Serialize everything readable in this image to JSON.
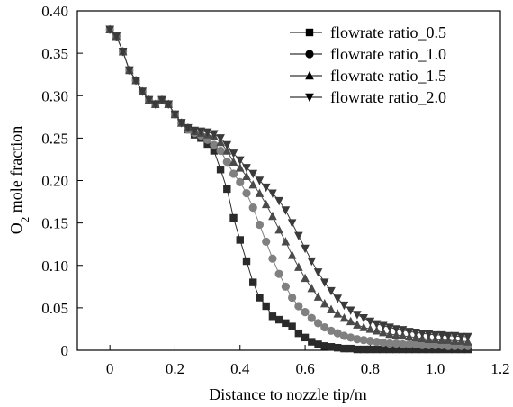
{
  "chart_data": {
    "type": "line",
    "title": "",
    "xlabel": "Distance to nozzle tip/m",
    "ylabel": "O2 mole fraction",
    "ylabel_main": "O",
    "ylabel_sub": "2",
    "ylabel_rest": " mole fraction",
    "xlim": [
      -0.1,
      1.2
    ],
    "ylim": [
      0,
      0.4
    ],
    "xticks": [
      0,
      0.2,
      0.4,
      0.6,
      0.8,
      1.0,
      1.2
    ],
    "xtick_labels": [
      "0",
      "0.2",
      "0.4",
      "0.6",
      "0.8",
      "1.0",
      "1.2"
    ],
    "yticks": [
      0,
      0.05,
      0.1,
      0.15,
      0.2,
      0.25,
      0.3,
      0.35,
      0.4
    ],
    "ytick_labels": [
      "0",
      "0.05",
      "0.10",
      "0.15",
      "0.20",
      "0.25",
      "0.30",
      "0.35",
      "0.40"
    ],
    "grid": false,
    "legend_position": "top-right",
    "series": [
      {
        "name": "flowrate ratio_0.5",
        "marker": "square",
        "color": "#2a2a2a",
        "x": [
          0,
          0.02,
          0.04,
          0.06,
          0.08,
          0.1,
          0.12,
          0.14,
          0.16,
          0.18,
          0.2,
          0.22,
          0.24,
          0.26,
          0.28,
          0.3,
          0.32,
          0.34,
          0.36,
          0.38,
          0.4,
          0.42,
          0.44,
          0.46,
          0.48,
          0.5,
          0.52,
          0.54,
          0.56,
          0.58,
          0.6,
          0.62,
          0.64,
          0.66,
          0.68,
          0.7,
          0.72,
          0.74,
          0.76,
          0.78,
          0.8,
          0.82,
          0.84,
          0.86,
          0.88,
          0.9,
          0.92,
          0.94,
          0.96,
          0.98,
          1.0,
          1.02,
          1.04,
          1.06,
          1.08,
          1.1
        ],
        "y": [
          0.378,
          0.37,
          0.352,
          0.33,
          0.318,
          0.305,
          0.295,
          0.29,
          0.295,
          0.29,
          0.278,
          0.268,
          0.26,
          0.254,
          0.25,
          0.243,
          0.235,
          0.213,
          0.19,
          0.156,
          0.13,
          0.105,
          0.08,
          0.062,
          0.052,
          0.04,
          0.036,
          0.032,
          0.028,
          0.02,
          0.015,
          0.01,
          0.007,
          0.005,
          0.004,
          0.003,
          0.002,
          0.002,
          0.001,
          0.001,
          0.001,
          0.001,
          0.001,
          0.001,
          0.001,
          0.001,
          0.001,
          0.001,
          0.001,
          0.001,
          0.001,
          0.001,
          0.001,
          0.001,
          0.001,
          0.001
        ]
      },
      {
        "name": "flowrate ratio_1.0",
        "marker": "circle",
        "color": "#808080",
        "x": [
          0,
          0.02,
          0.04,
          0.06,
          0.08,
          0.1,
          0.12,
          0.14,
          0.16,
          0.18,
          0.2,
          0.22,
          0.24,
          0.26,
          0.28,
          0.3,
          0.32,
          0.34,
          0.36,
          0.38,
          0.4,
          0.42,
          0.44,
          0.46,
          0.48,
          0.5,
          0.52,
          0.54,
          0.56,
          0.58,
          0.6,
          0.62,
          0.64,
          0.66,
          0.68,
          0.7,
          0.72,
          0.74,
          0.76,
          0.78,
          0.8,
          0.82,
          0.84,
          0.86,
          0.88,
          0.9,
          0.92,
          0.94,
          0.96,
          0.98,
          1.0,
          1.02,
          1.04,
          1.06,
          1.08,
          1.1
        ],
        "y": [
          0.378,
          0.37,
          0.352,
          0.33,
          0.318,
          0.305,
          0.295,
          0.29,
          0.295,
          0.29,
          0.278,
          0.268,
          0.26,
          0.256,
          0.253,
          0.248,
          0.242,
          0.235,
          0.222,
          0.208,
          0.198,
          0.185,
          0.168,
          0.148,
          0.128,
          0.108,
          0.09,
          0.075,
          0.062,
          0.052,
          0.045,
          0.038,
          0.032,
          0.027,
          0.023,
          0.02,
          0.017,
          0.015,
          0.013,
          0.012,
          0.011,
          0.01,
          0.009,
          0.008,
          0.008,
          0.007,
          0.007,
          0.007,
          0.006,
          0.006,
          0.006,
          0.006,
          0.005,
          0.005,
          0.005,
          0.005
        ]
      },
      {
        "name": "flowrate ratio_1.5",
        "marker": "triangle-up",
        "color": "#4a4a4a",
        "x": [
          0,
          0.02,
          0.04,
          0.06,
          0.08,
          0.1,
          0.12,
          0.14,
          0.16,
          0.18,
          0.2,
          0.22,
          0.24,
          0.26,
          0.28,
          0.3,
          0.32,
          0.34,
          0.36,
          0.38,
          0.4,
          0.42,
          0.44,
          0.46,
          0.48,
          0.5,
          0.52,
          0.54,
          0.56,
          0.58,
          0.6,
          0.62,
          0.64,
          0.66,
          0.68,
          0.7,
          0.72,
          0.74,
          0.76,
          0.78,
          0.8,
          0.82,
          0.84,
          0.86,
          0.88,
          0.9,
          0.92,
          0.94,
          0.96,
          0.98,
          1.0,
          1.02,
          1.04,
          1.06,
          1.08,
          1.1
        ],
        "y": [
          0.378,
          0.37,
          0.352,
          0.33,
          0.318,
          0.305,
          0.295,
          0.29,
          0.295,
          0.29,
          0.278,
          0.268,
          0.262,
          0.258,
          0.256,
          0.254,
          0.252,
          0.245,
          0.235,
          0.222,
          0.215,
          0.205,
          0.195,
          0.185,
          0.172,
          0.158,
          0.142,
          0.128,
          0.112,
          0.098,
          0.085,
          0.073,
          0.063,
          0.055,
          0.048,
          0.043,
          0.038,
          0.034,
          0.03,
          0.027,
          0.025,
          0.023,
          0.021,
          0.019,
          0.018,
          0.017,
          0.016,
          0.015,
          0.014,
          0.013,
          0.013,
          0.012,
          0.012,
          0.011,
          0.011,
          0.01
        ]
      },
      {
        "name": "flowrate ratio_2.0",
        "marker": "triangle-down",
        "color": "#3a3a3a",
        "x": [
          0,
          0.02,
          0.04,
          0.06,
          0.08,
          0.1,
          0.12,
          0.14,
          0.16,
          0.18,
          0.2,
          0.22,
          0.24,
          0.26,
          0.28,
          0.3,
          0.32,
          0.34,
          0.36,
          0.38,
          0.4,
          0.42,
          0.44,
          0.46,
          0.48,
          0.5,
          0.52,
          0.54,
          0.56,
          0.58,
          0.6,
          0.62,
          0.64,
          0.66,
          0.68,
          0.7,
          0.72,
          0.74,
          0.76,
          0.78,
          0.8,
          0.82,
          0.84,
          0.86,
          0.88,
          0.9,
          0.92,
          0.94,
          0.96,
          0.98,
          1.0,
          1.02,
          1.04,
          1.06,
          1.08,
          1.1
        ],
        "y": [
          0.378,
          0.37,
          0.352,
          0.33,
          0.318,
          0.305,
          0.295,
          0.29,
          0.295,
          0.29,
          0.278,
          0.268,
          0.262,
          0.259,
          0.258,
          0.257,
          0.255,
          0.25,
          0.242,
          0.232,
          0.224,
          0.215,
          0.208,
          0.2,
          0.192,
          0.185,
          0.176,
          0.165,
          0.15,
          0.135,
          0.12,
          0.105,
          0.092,
          0.08,
          0.07,
          0.061,
          0.053,
          0.047,
          0.042,
          0.038,
          0.034,
          0.031,
          0.029,
          0.027,
          0.025,
          0.024,
          0.022,
          0.021,
          0.02,
          0.019,
          0.018,
          0.018,
          0.017,
          0.017,
          0.016,
          0.016
        ]
      }
    ]
  }
}
